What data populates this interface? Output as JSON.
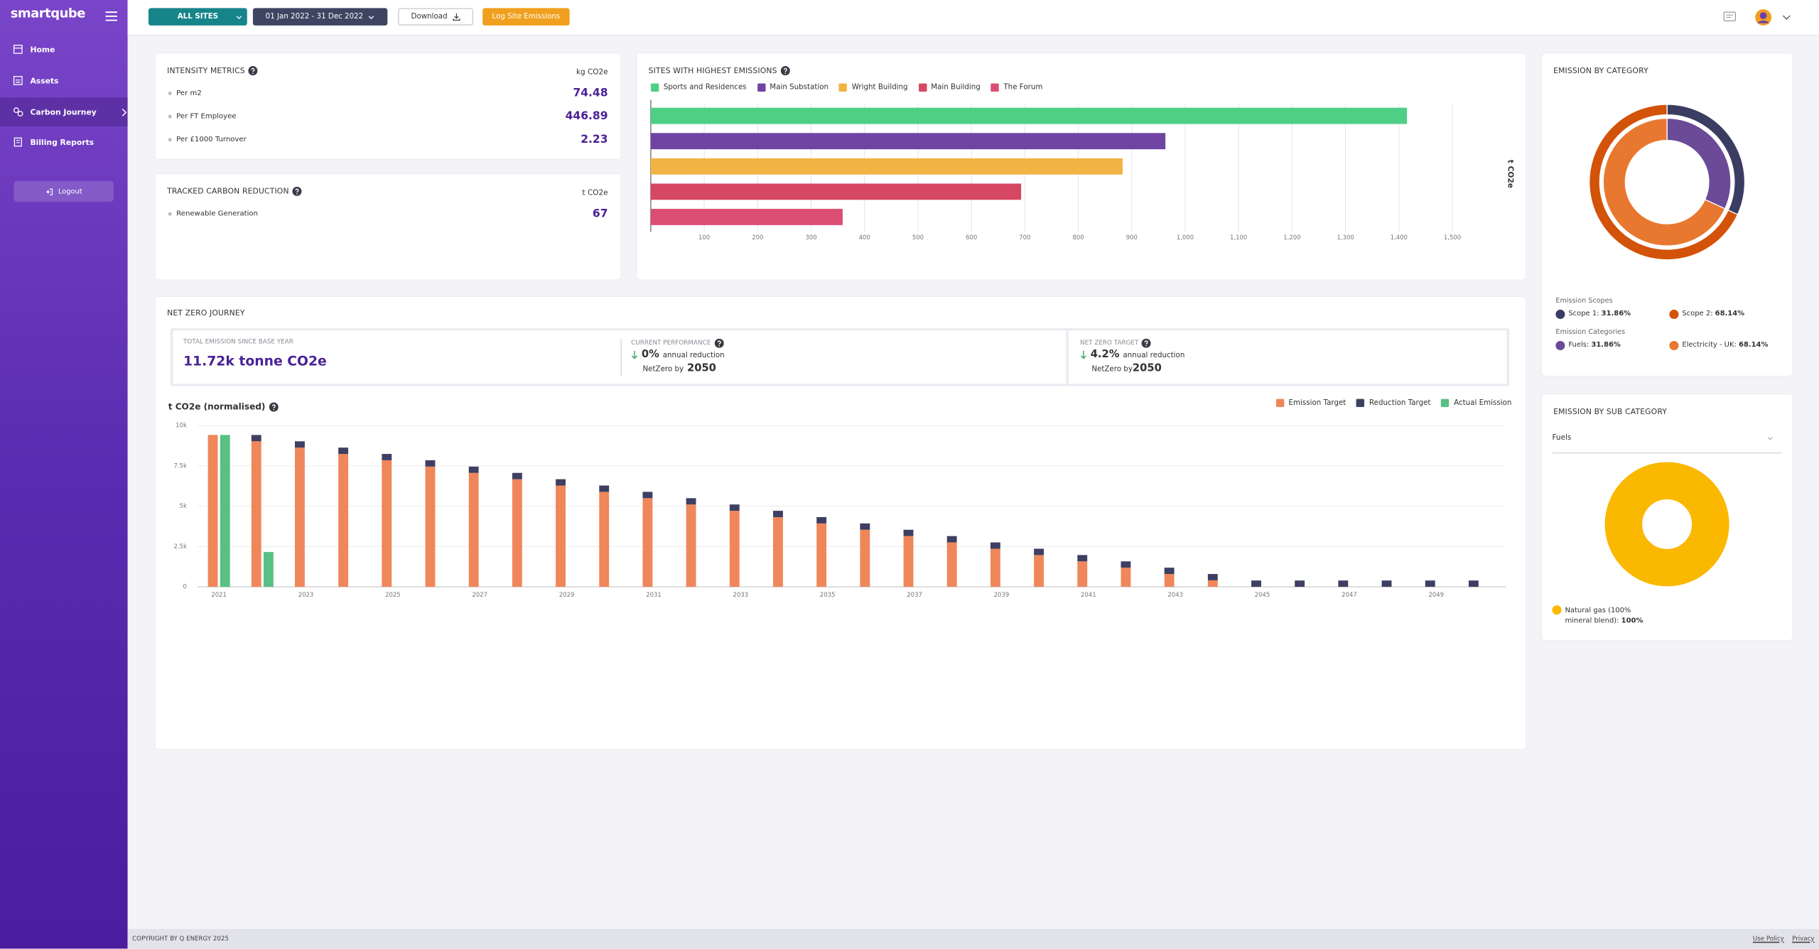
{
  "sidebar": {
    "logo": "smartqube",
    "nav": [
      "Home",
      "Assets",
      "Carbon Journey",
      "Billing Reports"
    ],
    "logout": "Logout"
  },
  "toolbar": {
    "site": "ALL SITES",
    "date_range": "01 Jan 2022 - 31 Dec 2022",
    "download": "Download",
    "log_button": "Log Site Emissions"
  },
  "intensity_metrics": {
    "title": "INTENSITY METRICS",
    "unit": "kg CO2e",
    "rows": [
      {
        "label": "Per m2",
        "value": "74.48"
      },
      {
        "label": "Per FT Employee",
        "value": "446.89"
      },
      {
        "label": "Per £1000 Turnover",
        "value": "2.23"
      }
    ]
  },
  "tracked_reduction": {
    "title": "TRACKED CARBON REDUCTION",
    "unit": "t CO2e",
    "rows": [
      {
        "label": "Renewable Generation",
        "value": "67"
      }
    ]
  },
  "net_zero": {
    "title": "NET ZERO JOURNEY",
    "total": {
      "label": "TOTAL EMISSION SINCE BASE YEAR",
      "value": "11.72k tonne CO2e"
    },
    "current": {
      "label": "CURRENT PERFORMANCE",
      "rate": "0%",
      "rate_text": "annual reduction",
      "by_label": "NetZero by",
      "year": "2050"
    },
    "target": {
      "label": "NET ZERO TARGET",
      "rate": "4.2%",
      "rate_text": "annual reduction",
      "by_label": "NetZero by",
      "year": "2050"
    }
  },
  "sub_category_filter": "Fuels",
  "footer": {
    "copyright": "COPYRIGHT BY Q ENERGY 2025",
    "links": [
      "Use Policy",
      "Privacy"
    ]
  },
  "chart_data": [
    {
      "type": "hbar",
      "title": "SITES WITH HIGHEST EMISSIONS",
      "x_label": "t CO2e",
      "categories": [
        "Sports and Residences",
        "Main Substation",
        "Wright Building",
        "Main Building",
        "The Forum"
      ],
      "values": [
        1415,
        963,
        883,
        693,
        359
      ],
      "colors": [
        "#4fce85",
        "#6f44a3",
        "#f1b443",
        "#d64761",
        "#dc4d74"
      ],
      "xlim": [
        0,
        1550
      ],
      "xticks": [
        100,
        200,
        300,
        400,
        500,
        600,
        700,
        800,
        900,
        {
          "value": 1000,
          "label": "1,000"
        },
        {
          "value": 1100,
          "label": "1,100"
        },
        {
          "value": 1200,
          "label": "1,200"
        },
        {
          "value": 1300,
          "label": "1,300"
        },
        {
          "value": 1400,
          "label": "1,400"
        },
        {
          "value": 1500,
          "label": "1,500"
        }
      ],
      "grid": true
    },
    {
      "type": "pie",
      "title": "EMISSION BY CATEGORY",
      "rings": [
        {
          "name": "Emission Scopes",
          "labels": [
            "Scope 1:",
            "Scope 2:"
          ],
          "values": [
            31.86,
            68.14
          ],
          "value_labels": [
            "31.86%",
            "68.14%"
          ],
          "colors": [
            "#3b3c62",
            "#d25309"
          ]
        },
        {
          "name": "Emission Categories",
          "labels": [
            "Fuels:",
            "Electricity - UK:"
          ],
          "values": [
            31.86,
            68.14
          ],
          "value_labels": [
            "31.86%",
            "68.14%"
          ],
          "colors": [
            "#6b4a98",
            "#e8782f"
          ]
        }
      ]
    },
    {
      "type": "bar",
      "title": "t CO2e (normalised)",
      "x": [
        2021,
        2022,
        2023,
        2024,
        2025,
        2026,
        2027,
        2028,
        2029,
        2030,
        2031,
        2032,
        2033,
        2034,
        2035,
        2036,
        2037,
        2038,
        2039,
        2040,
        2041,
        2042,
        2043,
        2044,
        2045,
        2046,
        2047,
        2048,
        2049,
        2050
      ],
      "series": [
        {
          "name": "Emission Target",
          "color": "#ef875a",
          "stack": "target",
          "values": [
            9420,
            9028,
            8636,
            8244,
            7852,
            7460,
            7068,
            6676,
            6284,
            5892,
            5500,
            5108,
            4716,
            4324,
            3932,
            3540,
            3148,
            2756,
            2364,
            1972,
            1580,
            1188,
            796,
            404,
            0,
            0,
            0,
            0,
            0,
            0
          ]
        },
        {
          "name": "Reduction Target",
          "color": "#3d3f63",
          "stack": "target",
          "values": [
            null,
            392,
            392,
            392,
            392,
            392,
            392,
            392,
            392,
            392,
            392,
            392,
            392,
            392,
            392,
            392,
            392,
            392,
            392,
            392,
            392,
            392,
            392,
            392,
            392,
            392,
            392,
            392,
            392,
            392
          ]
        },
        {
          "name": "Actual Emission",
          "color": "#58c084",
          "stack": "actual",
          "values": [
            9420,
            2160,
            null,
            null,
            null,
            null,
            null,
            null,
            null,
            null,
            null,
            null,
            null,
            null,
            null,
            null,
            null,
            null,
            null,
            null,
            null,
            null,
            null,
            null,
            null,
            null,
            null,
            null,
            null,
            null
          ]
        }
      ],
      "xlim": [
        2020.5,
        2050.6
      ],
      "xticks": [
        2021,
        2023,
        2025,
        2027,
        2029,
        2031,
        2033,
        2035,
        2037,
        2039,
        2041,
        2043,
        2045,
        2047,
        2049
      ],
      "ylim": [
        0,
        10000
      ],
      "yticks": [
        0,
        {
          "value": 2500,
          "label": "2.5k"
        },
        {
          "value": 5000,
          "label": "5k"
        },
        {
          "value": 7500,
          "label": "7.5k"
        },
        {
          "value": 10000,
          "label": "10k"
        }
      ],
      "grid": true
    },
    {
      "type": "pie",
      "title": "EMISSION BY SUB CATEGORY",
      "labels": [
        "Natural gas (100% mineral blend):"
      ],
      "values": [
        100
      ],
      "value_labels": [
        "100%"
      ],
      "colors": [
        "#fbb800"
      ]
    }
  ]
}
